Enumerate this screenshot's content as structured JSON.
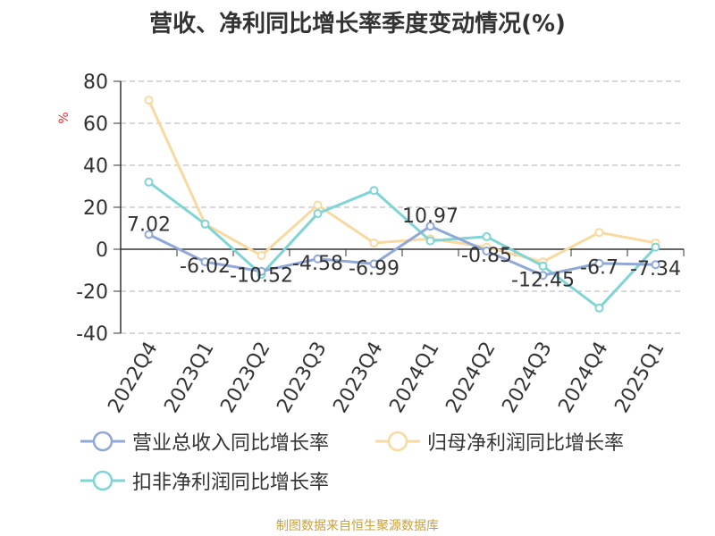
{
  "chart_data": {
    "type": "line",
    "title": "营收、净利同比增长率季度变动情况(%)",
    "ylabel": "%",
    "ylim": [
      -40,
      80
    ],
    "yticks": [
      80,
      60,
      40,
      20,
      0,
      -20,
      -40
    ],
    "grid": true,
    "legend_position": "bottom",
    "categories": [
      "2022Q4",
      "2023Q1",
      "2023Q2",
      "2023Q3",
      "2023Q4",
      "2024Q1",
      "2024Q2",
      "2024Q3",
      "2024Q4",
      "2025Q1"
    ],
    "series": [
      {
        "name": "营业总收入同比增长率",
        "color": "#8fa8d8",
        "values": [
          7.02,
          -6.02,
          -10.52,
          -4.58,
          -6.99,
          10.97,
          -0.85,
          -12.45,
          -6.7,
          -7.34
        ],
        "data_labels": [
          "7.02",
          "-6.02",
          "-10.52",
          "-4.58",
          "-6.99",
          "10.97",
          "-0.85",
          "-12.45",
          "-6.7",
          "-7.34"
        ]
      },
      {
        "name": "归母净利润同比增长率",
        "color": "#f8d9a0",
        "values": [
          71,
          12,
          -3,
          21,
          3,
          5,
          1,
          -6,
          8,
          3
        ]
      },
      {
        "name": "扣非净利润同比增长率",
        "color": "#7fd4d6",
        "values": [
          32,
          12,
          -12,
          17,
          28,
          4,
          6,
          -8,
          -28,
          1
        ]
      }
    ]
  },
  "source": "制图数据来自恒生聚源数据库",
  "colors": {
    "title": "#333333",
    "axis": "#333333",
    "grid": "#cccccc",
    "ylabel": "#e03030",
    "source": "#c8a040"
  }
}
